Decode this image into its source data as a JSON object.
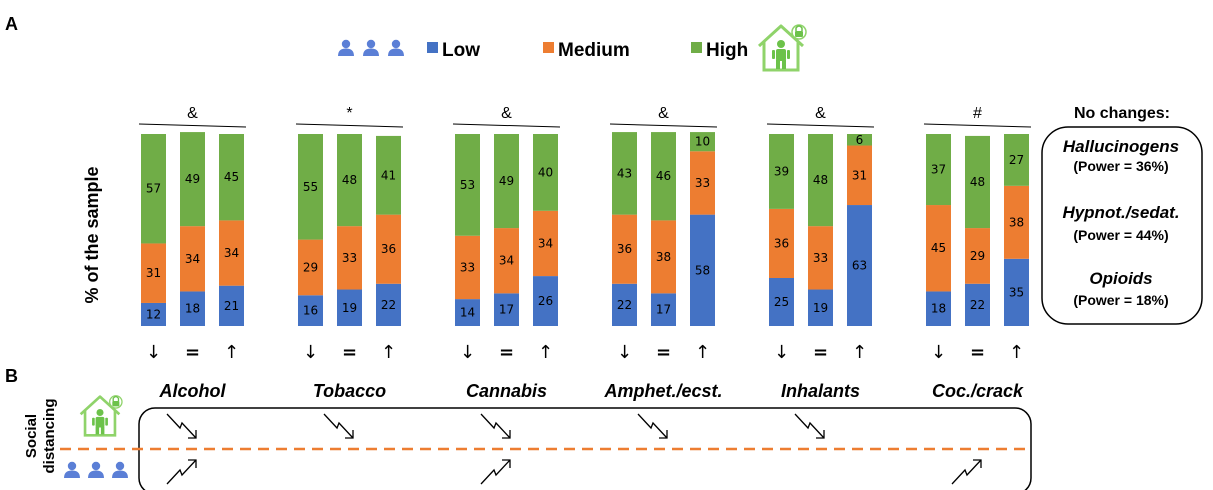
{
  "panels": {
    "a": "A",
    "b": "B"
  },
  "legend": [
    {
      "label": "Low",
      "color": "#4472c4"
    },
    {
      "label": "Medium",
      "color": "#ed7d31"
    },
    {
      "label": "High",
      "color": "#70ad47"
    }
  ],
  "icons": {
    "people": "people-group-icon",
    "house": "house-lock-icon"
  },
  "chart_data": {
    "type": "bar",
    "stacked": true,
    "ylabel": "% of the sample",
    "ylim": [
      0,
      100
    ],
    "grid": false,
    "legend_position": "top-center",
    "categories": [
      "Alcohol",
      "Tobacco",
      "Cannabis",
      "Amphet./ecst.",
      "Inhalants",
      "Coc./crack"
    ],
    "significance": [
      "&",
      "*",
      "&",
      "&",
      "&",
      "#"
    ],
    "bar_groups": [
      "↓",
      "=",
      "↑"
    ],
    "series": [
      {
        "name": "Low",
        "color": "#4472c4",
        "values": [
          [
            12,
            18,
            21
          ],
          [
            16,
            19,
            22
          ],
          [
            14,
            17,
            26
          ],
          [
            22,
            17,
            58
          ],
          [
            25,
            19,
            63
          ],
          [
            18,
            22,
            35
          ]
        ]
      },
      {
        "name": "Medium",
        "color": "#ed7d31",
        "values": [
          [
            31,
            34,
            34
          ],
          [
            29,
            33,
            36
          ],
          [
            33,
            34,
            34
          ],
          [
            36,
            38,
            33
          ],
          [
            36,
            33,
            31
          ],
          [
            45,
            29,
            38
          ]
        ]
      },
      {
        "name": "High",
        "color": "#70ad47",
        "values": [
          [
            57,
            49,
            45
          ],
          [
            55,
            48,
            41
          ],
          [
            53,
            49,
            40
          ],
          [
            43,
            46,
            10
          ],
          [
            39,
            48,
            6
          ],
          [
            37,
            48,
            27
          ]
        ]
      }
    ]
  },
  "no_changes": {
    "title": "No changes:",
    "items": [
      {
        "name": "Hallucinogens",
        "power": "(Power = 36%)"
      },
      {
        "name": "Hypnot./sedat.",
        "power": "(Power = 44%)"
      },
      {
        "name": "Opioids",
        "power": "(Power = 18%)"
      }
    ]
  },
  "panel_b": {
    "label_line1": "Social",
    "label_line2": "distancing",
    "divider_color": "#ed7d31",
    "trends": {
      "down": [
        true,
        true,
        true,
        true,
        true,
        false
      ],
      "up": [
        true,
        false,
        true,
        false,
        false,
        true
      ]
    }
  }
}
